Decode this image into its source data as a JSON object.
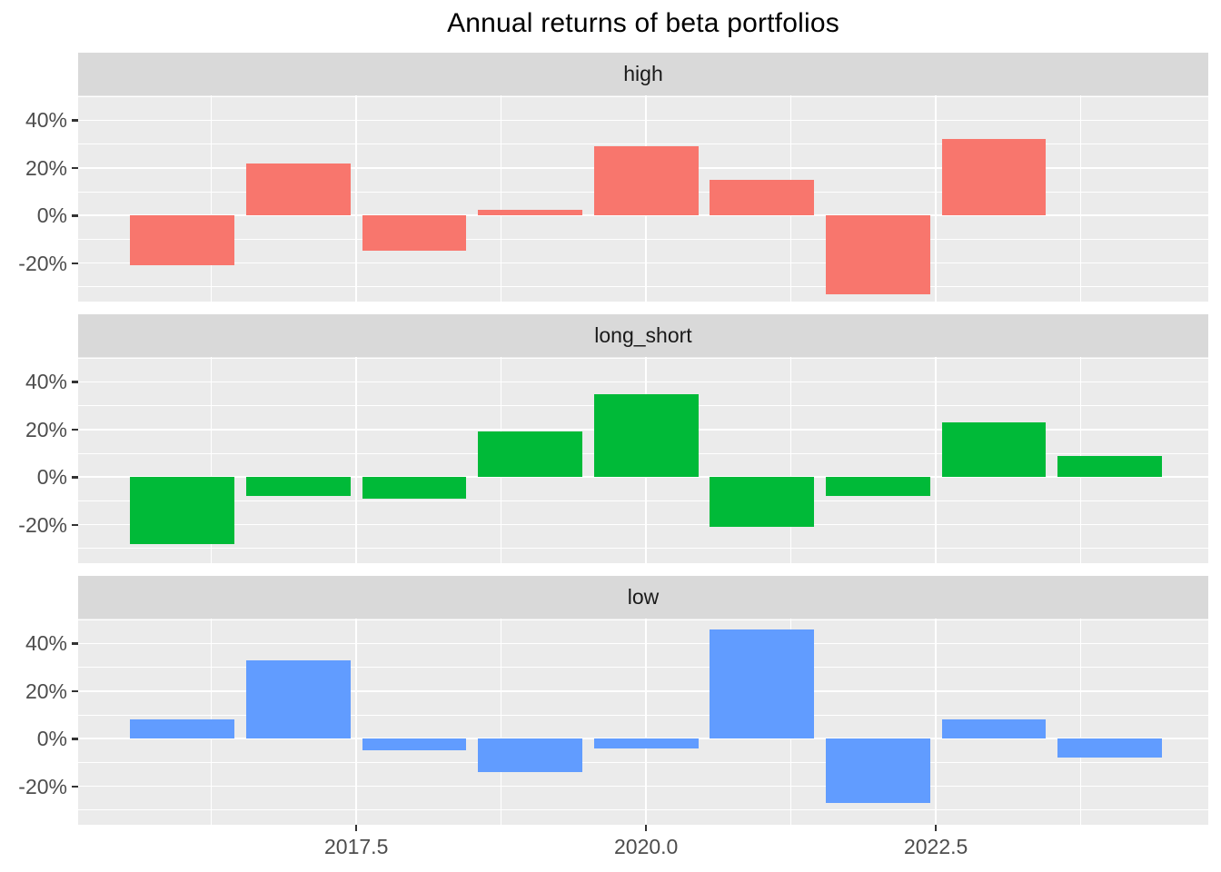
{
  "chart_data": {
    "type": "bar",
    "title": "Annual returns of beta portfolios",
    "xlabel": "",
    "ylabel": "",
    "y_unit": "%",
    "x": [
      2016,
      2017,
      2018,
      2019,
      2020,
      2021,
      2022,
      2023,
      2024
    ],
    "facets": [
      {
        "label": "high",
        "color": "#F8766D",
        "values": [
          -21,
          22,
          -15,
          2.5,
          29,
          15,
          -33,
          32,
          null
        ]
      },
      {
        "label": "long_short",
        "color": "#00BA38",
        "values": [
          -28,
          -8,
          -9,
          19,
          35,
          -21,
          -8,
          23,
          9
        ]
      },
      {
        "label": "low",
        "color": "#619CFF",
        "values": [
          8,
          33,
          -5,
          -14,
          -4,
          46,
          -27,
          8,
          -8
        ]
      }
    ],
    "y_ticks": [
      {
        "value": 40,
        "label": "40%"
      },
      {
        "value": 20,
        "label": "20%"
      },
      {
        "value": 0,
        "label": "0%"
      },
      {
        "value": -20,
        "label": "-20%"
      }
    ],
    "x_ticks": [
      {
        "value": 2017.5,
        "label": "2017.5"
      },
      {
        "value": 2020.0,
        "label": "2020.0"
      },
      {
        "value": 2022.5,
        "label": "2022.5"
      }
    ],
    "y_minor_gridlines": [
      -30,
      -10,
      10,
      30,
      50
    ],
    "x_minor_gridlines": [
      2016.25,
      2018.75,
      2021.25,
      2023.75
    ],
    "xlim": [
      2015.1,
      2024.85
    ],
    "ylim": [
      -36.2,
      50.5
    ],
    "bar_width_years": 0.9,
    "grid": "white major+minor on grey panel",
    "legend": "none",
    "colors": {
      "panel_bg": "#EBEBEB",
      "strip_bg": "#D9D9D9",
      "gridline": "#FFFFFF",
      "axis_text": "#4D4D4D",
      "strip_text": "#1A1A1A",
      "title_text": "#000000",
      "tick_mark": "#333333"
    }
  }
}
